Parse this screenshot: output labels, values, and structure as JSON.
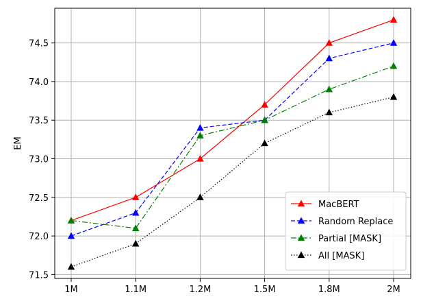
{
  "chart_data": {
    "type": "line",
    "title": "",
    "xlabel": "",
    "ylabel": "EM",
    "categories": [
      "1M",
      "1.1M",
      "1.2M",
      "1.5M",
      "1.8M",
      "2M"
    ],
    "ylim": [
      71.45,
      74.95
    ],
    "yticks": [
      "71.5",
      "72.0",
      "72.5",
      "73.0",
      "73.5",
      "74.0",
      "74.5"
    ],
    "grid": true,
    "legend_position": "lower-right",
    "series": [
      {
        "name": "MacBERT",
        "values": [
          72.2,
          72.5,
          73.0,
          73.7,
          74.5,
          74.8
        ],
        "color": "#ff0000",
        "line_style": "solid",
        "marker": "triangle-up"
      },
      {
        "name": "Random Replace",
        "values": [
          72.0,
          72.3,
          73.4,
          73.5,
          74.3,
          74.5
        ],
        "color": "#0000ff",
        "line_style": "dashed",
        "marker": "triangle-up"
      },
      {
        "name": "Partial [MASK]",
        "values": [
          72.2,
          72.1,
          73.3,
          73.5,
          73.9,
          74.2
        ],
        "color": "#008000",
        "line_style": "dashdot",
        "marker": "triangle-up"
      },
      {
        "name": "All [MASK]",
        "values": [
          71.6,
          71.9,
          72.5,
          73.2,
          73.6,
          73.8
        ],
        "color": "#000000",
        "line_style": "dotted",
        "marker": "triangle-up"
      }
    ]
  }
}
